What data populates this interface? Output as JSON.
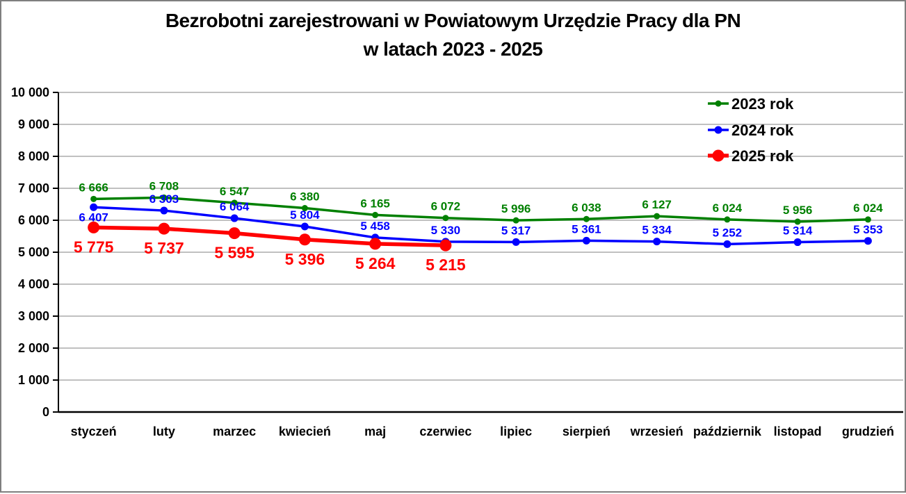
{
  "title": {
    "line1": "Bezrobotni zarejestrowani w Powiatowym Urzędzie Pracy dla PN",
    "line2": "w latach 2023 - 2025"
  },
  "colors": {
    "grid": "#ababab",
    "axis": "#000000",
    "text": "#000000",
    "series_2023": "#008000",
    "series_2024": "#0000ff",
    "series_2025": "#ff0000",
    "page_border": "#7f7f7f",
    "background": "#ffffff"
  },
  "chart_data": {
    "type": "line",
    "title": "Bezrobotni zarejestrowani w Powiatowym Urzędzie Pracy dla PN w latach 2023 - 2025",
    "xlabel": "",
    "ylabel": "",
    "ylim": [
      0,
      10000
    ],
    "y_tick_step": 1000,
    "y_tick_labels": [
      "0",
      "1 000",
      "2 000",
      "3 000",
      "4 000",
      "5 000",
      "6 000",
      "7 000",
      "8 000",
      "9 000",
      "10 000"
    ],
    "grid": "horizontal gridlines only",
    "legend_position": "inside top-right",
    "categories": [
      "styczeń",
      "luty",
      "marzec",
      "kwiecień",
      "maj",
      "czerwiec",
      "lipiec",
      "sierpień",
      "wrzesień",
      "październik",
      "listopad",
      "grudzień"
    ],
    "series": [
      {
        "name": "2023 rok",
        "color": "#008000",
        "values": [
          6666,
          6708,
          6547,
          6380,
          6165,
          6072,
          5996,
          6038,
          6127,
          6024,
          5956,
          6024
        ],
        "labels": [
          "6 666",
          "6 708",
          "6 547",
          "6 380",
          "6 165",
          "6 072",
          "5 996",
          "6 038",
          "6 127",
          "6 024",
          "5 956",
          "6 024"
        ]
      },
      {
        "name": "2024 rok",
        "color": "#0000ff",
        "values": [
          6407,
          6303,
          6064,
          5804,
          5458,
          5330,
          5317,
          5361,
          5334,
          5252,
          5314,
          5353
        ],
        "labels": [
          "6 407",
          "6 303",
          "6 064",
          "5 804",
          "5 458",
          "5 330",
          "5 317",
          "5 361",
          "5 334",
          "5 252",
          "5 314",
          "5 353"
        ]
      },
      {
        "name": "2025 rok",
        "color": "#ff0000",
        "values": [
          5775,
          5737,
          5595,
          5396,
          5264,
          5215
        ],
        "labels": [
          "5 775",
          "5 737",
          "5 595",
          "5 396",
          "5 264",
          "5 215"
        ]
      }
    ]
  }
}
